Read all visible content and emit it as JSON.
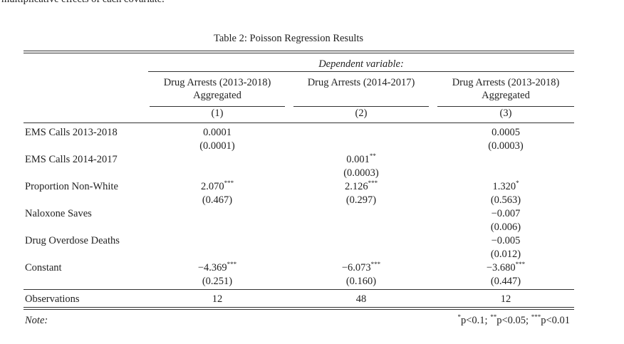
{
  "header_fragment": "multiplicative effects of each covariate.",
  "table": {
    "caption": "Table 2: Poisson Regression Results",
    "dependent_label": "Dependent variable:",
    "columns": [
      {
        "name_lines": [
          "Drug Arrests (2013-2018)",
          "Aggregated"
        ],
        "number": "(1)"
      },
      {
        "name_lines": [
          "Drug Arrests (2014-2017)"
        ],
        "number": "(2)"
      },
      {
        "name_lines": [
          "Drug Arrests (2013-2018)",
          "Aggregated"
        ],
        "number": "(3)"
      }
    ],
    "rows": [
      {
        "label": "EMS Calls 2013-2018",
        "cells": [
          {
            "coef": "0.0001",
            "se": "(0.0001)"
          },
          null,
          {
            "coef": "0.0005",
            "se": "(0.0003)"
          }
        ]
      },
      {
        "label": "EMS Calls 2014-2017",
        "cells": [
          null,
          {
            "coef": "0.001",
            "stars": "**",
            "se": "(0.0003)"
          },
          null
        ]
      },
      {
        "label": "Proportion Non-White",
        "cells": [
          {
            "coef": "2.070",
            "stars": "***",
            "se": "(0.467)"
          },
          {
            "coef": "2.126",
            "stars": "***",
            "se": "(0.297)"
          },
          {
            "coef": "1.320",
            "stars": "*",
            "se": "(0.563)"
          }
        ]
      },
      {
        "label": "Naloxone Saves",
        "cells": [
          null,
          null,
          {
            "coef": "−0.007",
            "se": "(0.006)"
          }
        ]
      },
      {
        "label": "Drug Overdose Deaths",
        "cells": [
          null,
          null,
          {
            "coef": "−0.005",
            "se": "(0.012)"
          }
        ]
      },
      {
        "label": "Constant",
        "cells": [
          {
            "coef": "−4.369",
            "stars": "***",
            "se": "(0.251)"
          },
          {
            "coef": "−6.073",
            "stars": "***",
            "se": "(0.160)"
          },
          {
            "coef": "−3.680",
            "stars": "***",
            "se": "(0.447)"
          }
        ]
      }
    ],
    "observations": {
      "label": "Observations",
      "values": [
        "12",
        "48",
        "12"
      ]
    },
    "note": {
      "label": "Note:",
      "legend": [
        {
          "stars": "*",
          "text": "p<0.1;"
        },
        {
          "stars": "**",
          "text": "p<0.05;"
        },
        {
          "stars": "***",
          "text": "p<0.01"
        }
      ]
    }
  }
}
